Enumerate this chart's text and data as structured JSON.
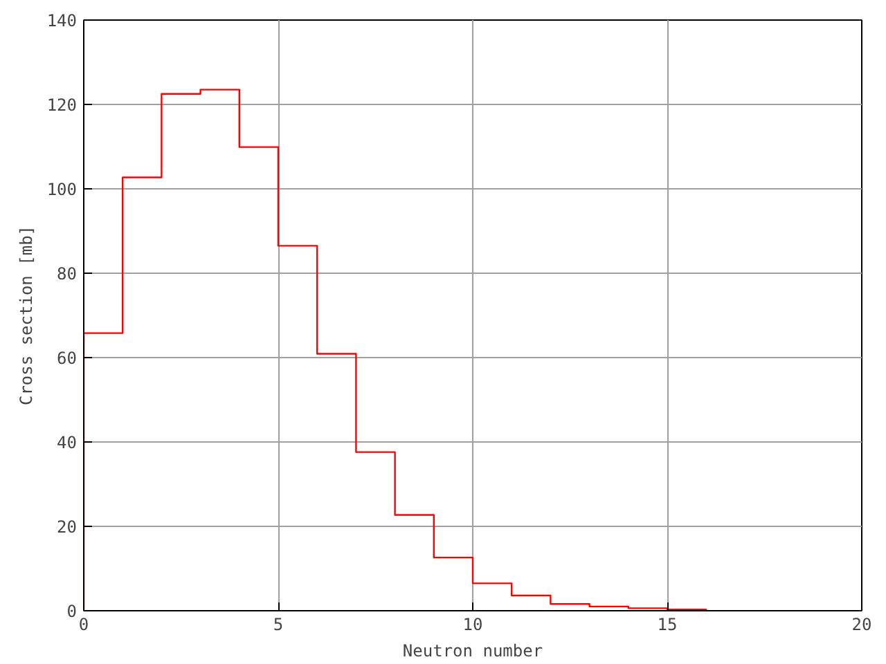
{
  "chart_data": {
    "type": "histogram",
    "xlabel": "Neutron number",
    "ylabel": "Cross section [mb]",
    "bins": [
      0,
      1,
      2,
      3,
      4,
      5,
      6,
      7,
      8,
      9,
      10,
      11,
      12,
      13,
      14,
      15,
      16
    ],
    "values": [
      65.8,
      102.7,
      122.5,
      123.5,
      109.9,
      86.5,
      60.9,
      37.6,
      22.7,
      12.6,
      6.5,
      3.6,
      1.6,
      1.0,
      0.6,
      0.3
    ],
    "color": "#ff0000",
    "xlim": [
      0,
      20
    ],
    "ylim": [
      0,
      140
    ],
    "xticks": [
      0,
      5,
      10,
      15,
      20
    ],
    "yticks": [
      0,
      20,
      40,
      60,
      80,
      100,
      120,
      140
    ],
    "grid": true
  }
}
